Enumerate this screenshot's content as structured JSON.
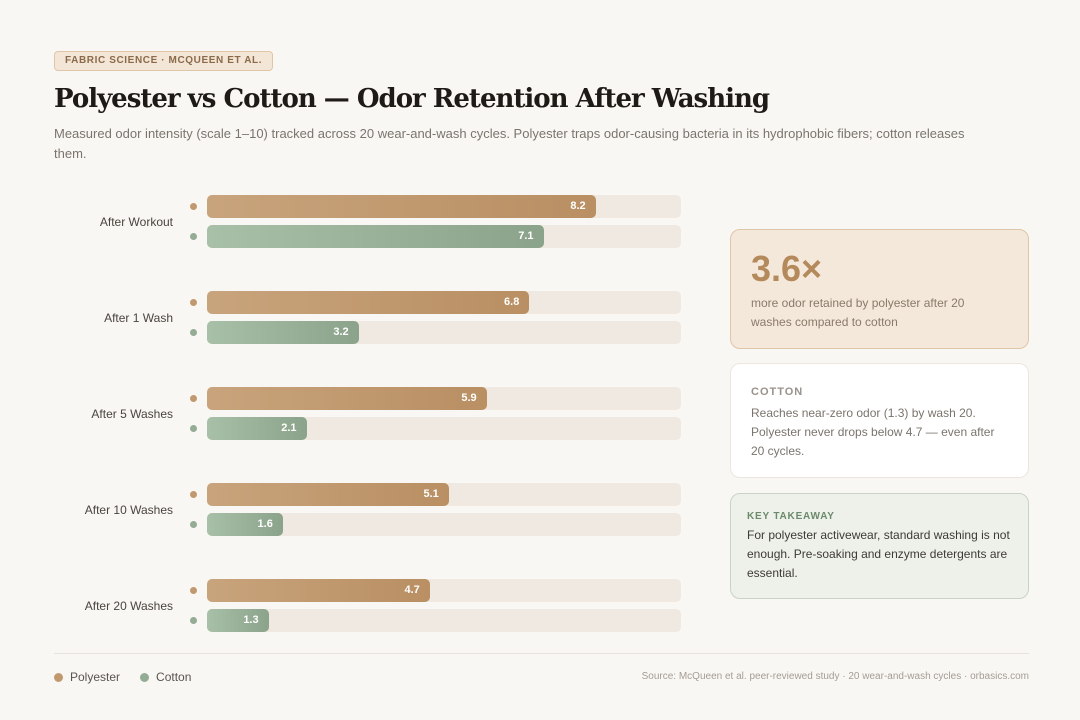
{
  "badge": "FABRIC SCIENCE · MCQUEEN ET AL.",
  "title": "Polyester vs Cotton — Odor Retention After Washing",
  "subtitle": "Measured odor intensity (scale 1–10) tracked across 20 wear-and-wash cycles. Polyester traps odor-causing bacteria in its hydrophobic fibers; cotton releases them.",
  "chart_data": {
    "type": "bar",
    "orientation": "horizontal",
    "xlim": [
      0,
      10
    ],
    "categories": [
      "After Workout",
      "After 1 Wash",
      "After 5 Washes",
      "After 10 Washes",
      "After 20 Washes"
    ],
    "series": [
      {
        "name": "Polyester",
        "color": "#c09a6e",
        "values": [
          8.2,
          6.8,
          5.9,
          5.1,
          4.7
        ]
      },
      {
        "name": "Cotton",
        "color": "#94ab94",
        "values": [
          7.1,
          3.2,
          2.1,
          1.6,
          1.3
        ]
      }
    ],
    "legend": "bottom-left"
  },
  "stat": {
    "value": "3.6×",
    "text": "more odor retained by polyester after 20 washes compared to cotton"
  },
  "cotton_card": {
    "heading": "COTTON",
    "text": "Reaches near-zero odor (1.3) by wash 20. Polyester never drops below 4.7 — even after 20 cycles."
  },
  "takeaway": {
    "heading": "KEY TAKEAWAY",
    "text": "For polyester activewear, standard washing is not enough. Pre-soaking and enzyme detergents are essential."
  },
  "footer": {
    "source": "Source: McQueen et al. peer-reviewed study · 20 wear-and-wash cycles · orbasics.com"
  }
}
